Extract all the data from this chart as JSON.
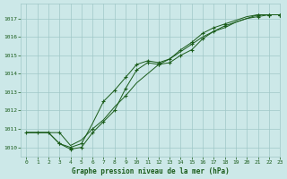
{
  "title": "Graphe pression niveau de la mer (hPa)",
  "xlim": [
    -0.5,
    23
  ],
  "ylim": [
    1009.5,
    1017.8
  ],
  "yticks": [
    1010,
    1011,
    1012,
    1013,
    1014,
    1015,
    1016,
    1017
  ],
  "xticks": [
    0,
    1,
    2,
    3,
    4,
    5,
    6,
    7,
    8,
    9,
    10,
    11,
    12,
    13,
    14,
    15,
    16,
    17,
    18,
    19,
    20,
    21,
    22,
    23
  ],
  "bg_color": "#cce8e8",
  "grid_color": "#a0c8c8",
  "line_color": "#1a5c1a",
  "series": [
    {
      "x": [
        0,
        1,
        2,
        3,
        4,
        5,
        6,
        7,
        8,
        9,
        10,
        11,
        12,
        13,
        14,
        15,
        16,
        17,
        18,
        19,
        20,
        21,
        22,
        23
      ],
      "y": [
        1010.8,
        1010.8,
        1010.8,
        1010.8,
        1010.1,
        1010.4,
        1011.0,
        1011.5,
        1012.2,
        1012.8,
        1013.5,
        1014.0,
        1014.5,
        1014.8,
        1015.2,
        1015.6,
        1016.0,
        1016.3,
        1016.6,
        1016.8,
        1017.0,
        1017.1,
        1017.2,
        1017.2
      ],
      "markers": [
        0,
        1,
        2,
        3,
        6,
        9,
        12,
        15,
        18,
        21,
        22,
        23
      ]
    },
    {
      "x": [
        0,
        1,
        2,
        3,
        4,
        5,
        6,
        7,
        8,
        9,
        10,
        11,
        12,
        13,
        14,
        15,
        16,
        17,
        18,
        19,
        20,
        21,
        22,
        23
      ],
      "y": [
        1010.8,
        1010.8,
        1010.8,
        1010.2,
        1010.0,
        1010.2,
        1011.3,
        1012.5,
        1013.1,
        1013.8,
        1014.5,
        1014.7,
        1014.6,
        1014.8,
        1015.3,
        1015.7,
        1016.2,
        1016.5,
        1016.7,
        1016.9,
        1017.1,
        1017.2,
        1017.2,
        1017.2
      ],
      "markers": [
        3,
        4,
        5,
        7,
        8,
        9,
        10,
        11,
        12,
        13,
        14,
        15,
        16,
        17,
        18,
        21,
        22,
        23
      ]
    },
    {
      "x": [
        0,
        1,
        2,
        3,
        4,
        5,
        6,
        7,
        8,
        9,
        10,
        11,
        12,
        13,
        14,
        15,
        16,
        17,
        18,
        19,
        20,
        21,
        22,
        23
      ],
      "y": [
        1010.8,
        1010.8,
        1010.8,
        1010.2,
        1009.9,
        1010.0,
        1010.8,
        1011.4,
        1012.0,
        1013.2,
        1014.2,
        1014.6,
        1014.5,
        1014.6,
        1015.0,
        1015.3,
        1015.9,
        1016.3,
        1016.5,
        1016.8,
        1017.0,
        1017.2,
        1017.2,
        1017.2
      ],
      "markers": [
        3,
        4,
        5,
        6,
        7,
        8,
        9,
        10,
        11,
        12,
        13,
        14,
        15,
        16,
        17,
        21,
        22,
        23
      ]
    }
  ]
}
